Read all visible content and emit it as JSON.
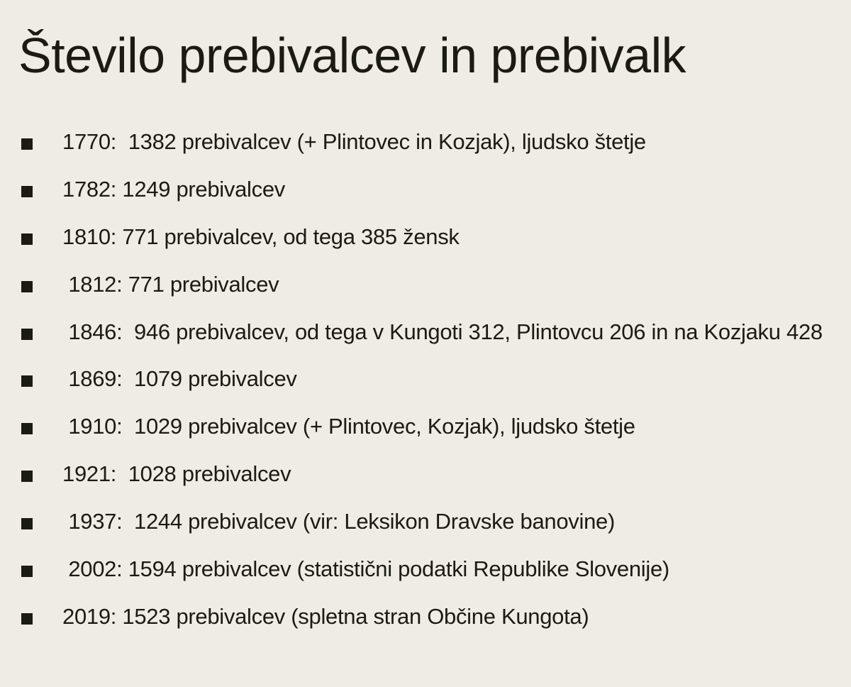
{
  "title": "Število prebivalcev in prebivalk",
  "items": [
    {
      "text": "1770:  1382 prebivalcev (+ Plintovec in Kozjak), ljudsko štetje"
    },
    {
      "text": "1782: 1249 prebivalcev"
    },
    {
      "text": "1810: 771 prebivalcev, od tega 385 žensk"
    },
    {
      "text": " 1812: 771 prebivalcev"
    },
    {
      "text": " 1846:  946 prebivalcev, od tega v Kungoti 312, Plintovcu 206 in na Kozjaku 428"
    },
    {
      "text": " 1869:  1079 prebivalcev"
    },
    {
      "text": " 1910:  1029 prebivalcev (+ Plintovec, Kozjak), ljudsko štetje"
    },
    {
      "text": "1921:  1028 prebivalcev"
    },
    {
      "text": " 1937:  1244 prebivalcev (vir: Leksikon Dravske banovine)"
    },
    {
      "text": " 2002: 1594 prebivalcev (statistični podatki Republike Slovenije)"
    },
    {
      "text": "2019: 1523 prebivalcev (spletna stran Občine Kungota)"
    }
  ]
}
